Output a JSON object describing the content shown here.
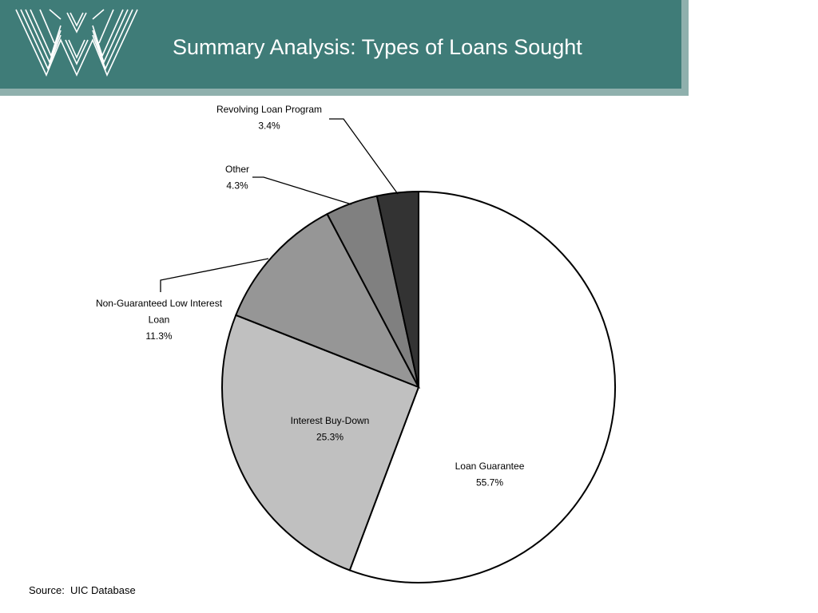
{
  "header": {
    "title": "Summary Analysis: Types of Loans Sought"
  },
  "footer": {
    "source": "Source:  UIC Database"
  },
  "colors": {
    "header_bg": "#3f7c78",
    "header_shadow": "#8fb0ad",
    "title_text": "#ffffff"
  },
  "chart_data": {
    "type": "pie",
    "title": "",
    "slices": [
      {
        "label": "Loan Guarantee",
        "value": 55.7,
        "display": "55.7%",
        "color": "#ffffff"
      },
      {
        "label": "Interest Buy-Down",
        "value": 25.3,
        "display": "25.3%",
        "color": "#c0c0c0"
      },
      {
        "label": "Non-Guaranteed Low Interest Loan",
        "value": 11.3,
        "display": "11.3%",
        "color": "#969696"
      },
      {
        "label": "Other",
        "value": 4.3,
        "display": "4.3%",
        "color": "#808080"
      },
      {
        "label": "Revolving Loan Program",
        "value": 3.4,
        "display": "3.4%",
        "color": "#333333"
      }
    ]
  }
}
